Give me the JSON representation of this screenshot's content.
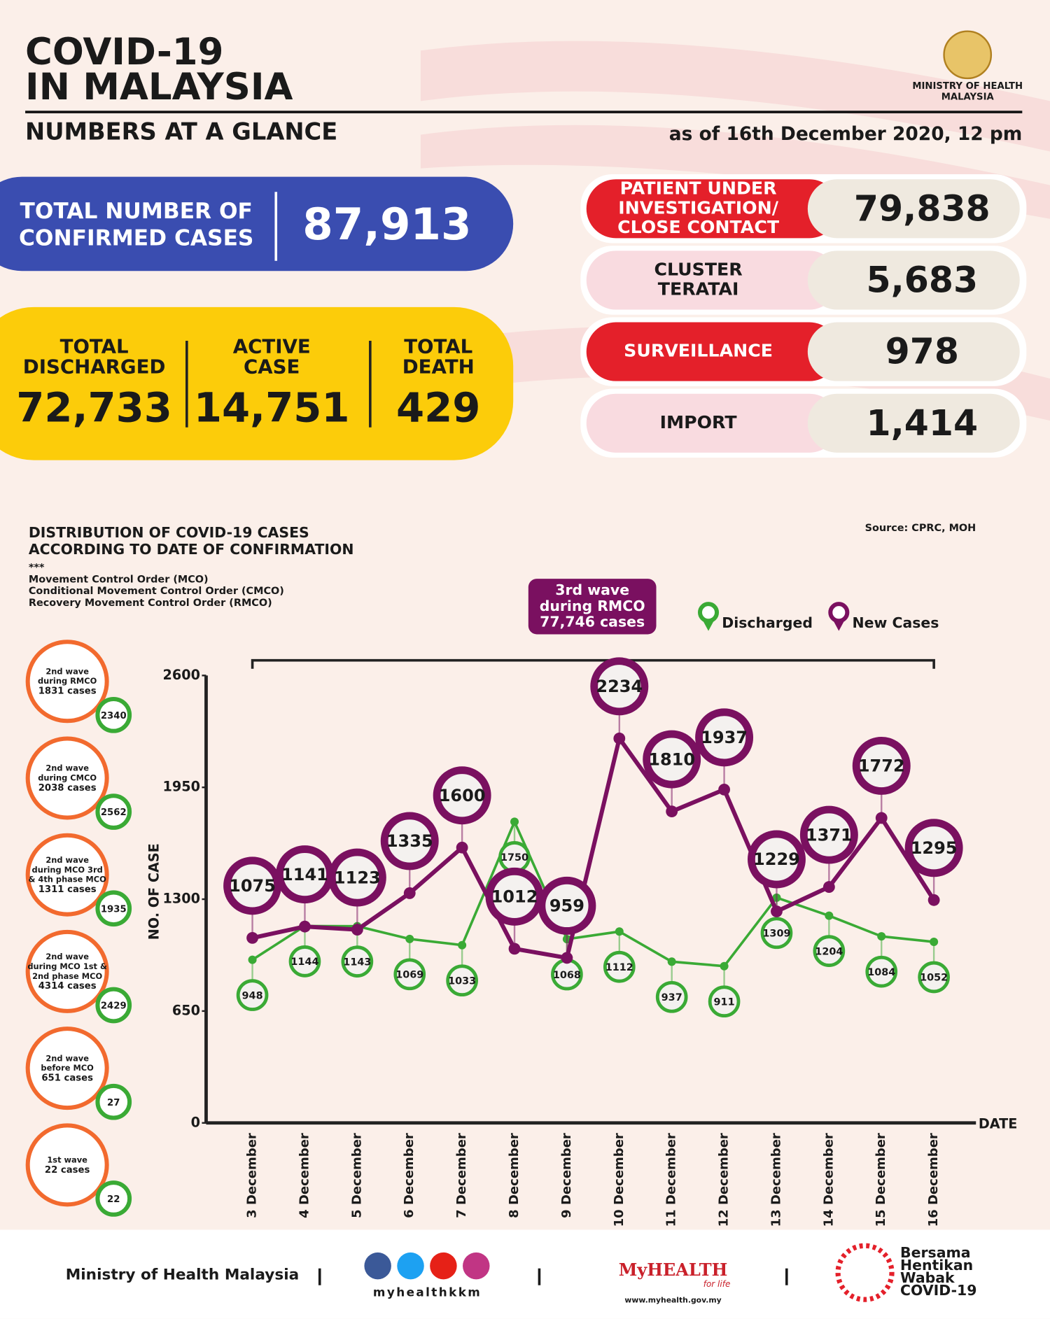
{
  "header": {
    "title": [
      "COVID-19",
      "IN MALAYSIA"
    ],
    "subtitle": "NUMBERS AT A GLANCE",
    "ministry": [
      "MINISTRY OF HEALTH",
      "MALAYSIA"
    ],
    "date": "as of 16th December 2020, 12 pm"
  },
  "confirmed": {
    "label": [
      "TOTAL NUMBER OF",
      "CONFIRMED CASES"
    ],
    "value": "87,913"
  },
  "outcomes": [
    {
      "label": [
        "TOTAL",
        "DISCHARGED"
      ],
      "value": "72,733"
    },
    {
      "label": [
        "ACTIVE",
        "CASE"
      ],
      "value": "14,751"
    },
    {
      "label": [
        "TOTAL",
        "DEATH"
      ],
      "value": "429"
    }
  ],
  "breakdown": [
    {
      "label": [
        "PATIENT UNDER",
        "INVESTIGATION/",
        "CLOSE CONTACT"
      ],
      "value": "79,838"
    },
    {
      "label": [
        "CLUSTER",
        "TERATAI"
      ],
      "value": "5,683"
    },
    {
      "label": [
        "SURVEILLANCE"
      ],
      "value": "978"
    },
    {
      "label": [
        "IMPORT"
      ],
      "value": "1,414"
    }
  ],
  "chart_data": {
    "type": "line",
    "title": [
      "DISTRIBUTION OF COVID-19 CASES",
      "ACCORDING TO DATE OF CONFIRMATION"
    ],
    "notes": [
      "***",
      "Movement Control Order (MCO)",
      "Conditional Movement Control Order (CMCO)",
      "Recovery Movement Control Order (RMCO)"
    ],
    "source": "Source: CPRC, MOH",
    "annotation": [
      "3rd wave",
      "during RMCO",
      "77,746 cases"
    ],
    "xlabel": "DATE",
    "ylabel": "NO. OF CASE",
    "categories": [
      "3 December",
      "4 December",
      "5 December",
      "6 December",
      "7 December",
      "8 December",
      "9 December",
      "10 December",
      "11 December",
      "12 December",
      "13 December",
      "14 December",
      "15 December",
      "16 December"
    ],
    "series": [
      {
        "name": "Discharged",
        "color": "#3aaa35",
        "values": [
          948,
          1144,
          1143,
          1069,
          1033,
          1750,
          1068,
          1112,
          937,
          911,
          1309,
          1204,
          1084,
          1052
        ]
      },
      {
        "name": "New Cases",
        "color": "#7a1060",
        "values": [
          1075,
          1141,
          1123,
          1335,
          1600,
          1012,
          959,
          2234,
          1810,
          1937,
          1229,
          1371,
          1772,
          1295
        ]
      }
    ],
    "ylim": [
      0,
      2600
    ],
    "yticks": [
      0,
      650,
      1300,
      1950,
      2600
    ]
  },
  "waves": [
    {
      "lines": [
        "2nd wave",
        "during RMCO",
        "1831 cases"
      ],
      "badge": "2340"
    },
    {
      "lines": [
        "2nd wave",
        "during CMCO",
        "2038 cases"
      ],
      "badge": "2562"
    },
    {
      "lines": [
        "2nd wave",
        "during MCO 3rd",
        "& 4th phase MCO",
        "1311 cases"
      ],
      "badge": "1935"
    },
    {
      "lines": [
        "2nd wave",
        "during MCO 1st &",
        "2nd phase MCO",
        "4314 cases"
      ],
      "badge": "2429"
    },
    {
      "lines": [
        "2nd wave",
        "before MCO",
        "651 cases"
      ],
      "badge": "27"
    },
    {
      "lines": [
        "1st wave",
        "22 cases"
      ],
      "badge": "22"
    }
  ],
  "footer": {
    "ministry": "Ministry of Health Malaysia",
    "social": "myhealthkkm",
    "brand": "MyHEALTH",
    "tagline": "for life",
    "url": "www.myhealth.gov.my",
    "campaign": [
      "Bersama",
      "Hentikan",
      "Wabak",
      "COVID-19"
    ]
  }
}
